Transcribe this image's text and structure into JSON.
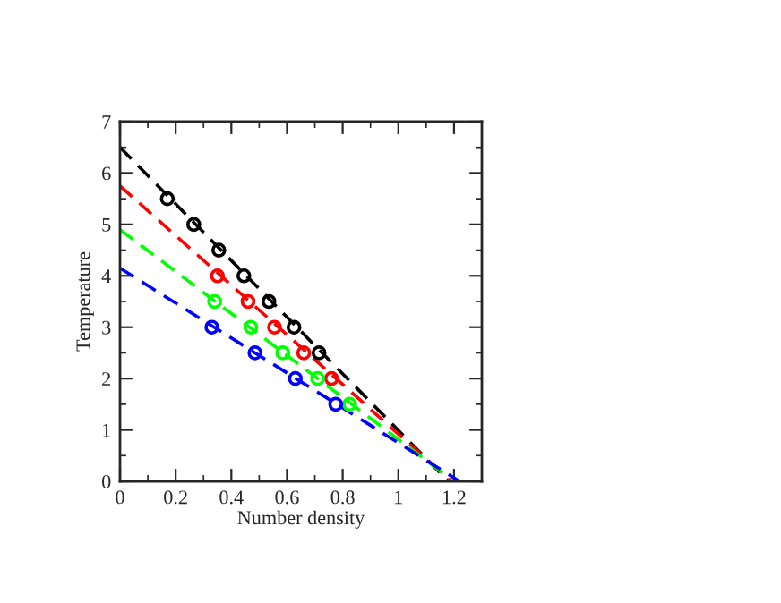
{
  "chart_data": {
    "type": "scatter",
    "xlabel": "Number density",
    "ylabel": "Temperature",
    "xlim": [
      0,
      1.3
    ],
    "ylim": [
      0,
      7
    ],
    "xticks": [
      0,
      0.2,
      0.4,
      0.6,
      0.8,
      1,
      1.2
    ],
    "yticks": [
      0,
      1,
      2,
      3,
      4,
      5,
      6,
      7
    ],
    "grid": false,
    "legend": false,
    "series": [
      {
        "type": "line",
        "color": "#000000",
        "line_style": "dashed",
        "x": [
          0,
          1.18
        ],
        "values": [
          6.5,
          0
        ]
      },
      {
        "type": "line",
        "color": "#ff0000",
        "line_style": "dashed",
        "x": [
          0,
          1.19
        ],
        "values": [
          5.75,
          0
        ]
      },
      {
        "type": "line",
        "color": "#00ff00",
        "line_style": "dashed",
        "x": [
          0,
          1.2
        ],
        "values": [
          4.9,
          0
        ]
      },
      {
        "type": "line",
        "color": "#0000ff",
        "line_style": "dashed",
        "x": [
          0,
          1.22
        ],
        "values": [
          4.15,
          0
        ]
      },
      {
        "marker": "circle",
        "color": "#000000",
        "x": [
          0.17,
          0.265,
          0.355,
          0.445,
          0.535,
          0.625,
          0.715
        ],
        "values": [
          5.5,
          5,
          4.5,
          4,
          3.5,
          3,
          2.5
        ]
      },
      {
        "marker": "circle",
        "color": "#ff0000",
        "x": [
          0.35,
          0.46,
          0.555,
          0.66,
          0.76
        ],
        "values": [
          4,
          3.5,
          3,
          2.5,
          2
        ]
      },
      {
        "marker": "circle",
        "color": "#00ff00",
        "x": [
          0.34,
          0.47,
          0.585,
          0.71,
          0.825
        ],
        "values": [
          3.5,
          3,
          2.5,
          2,
          1.5
        ]
      },
      {
        "marker": "circle",
        "color": "#0000ff",
        "x": [
          0.33,
          0.485,
          0.63,
          0.775
        ],
        "values": [
          3,
          2.5,
          2,
          1.5
        ]
      }
    ]
  }
}
